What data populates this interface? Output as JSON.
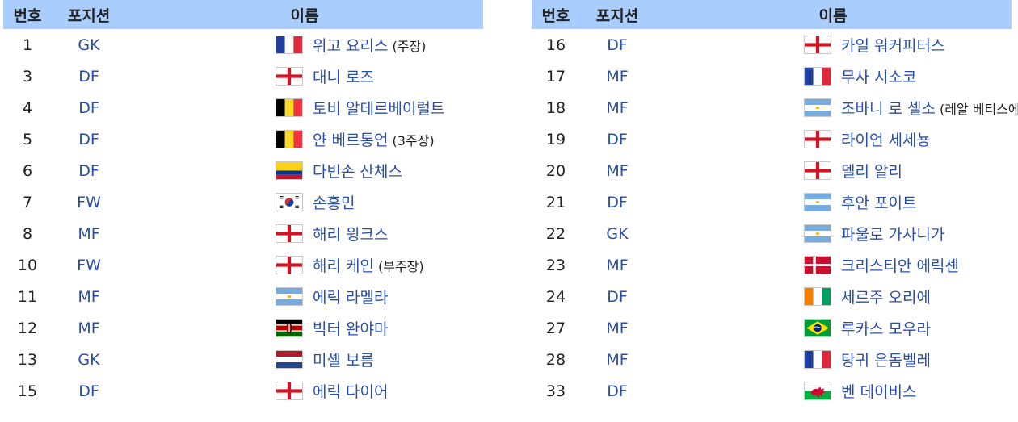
{
  "header": {
    "num": "번호",
    "pos": "포지션",
    "name": "이름"
  },
  "left": [
    {
      "num": "1",
      "pos": "GK",
      "flag": "france-flag",
      "name": "위고 요리스",
      "note": "(주장)"
    },
    {
      "num": "3",
      "pos": "DF",
      "flag": "england-flag",
      "name": "대니 로즈",
      "note": ""
    },
    {
      "num": "4",
      "pos": "DF",
      "flag": "belgium-flag",
      "name": "토비 알데르베이럴트",
      "note": ""
    },
    {
      "num": "5",
      "pos": "DF",
      "flag": "belgium-flag",
      "name": "얀 베르통언",
      "note": "(3주장)"
    },
    {
      "num": "6",
      "pos": "DF",
      "flag": "colombia-flag",
      "name": "다빈손 산체스",
      "note": ""
    },
    {
      "num": "7",
      "pos": "FW",
      "flag": "south-korea-flag",
      "name": "손흥민",
      "note": ""
    },
    {
      "num": "8",
      "pos": "MF",
      "flag": "england-flag",
      "name": "해리 윙크스",
      "note": ""
    },
    {
      "num": "10",
      "pos": "FW",
      "flag": "england-flag",
      "name": "해리 케인",
      "note": "(부주장)"
    },
    {
      "num": "11",
      "pos": "MF",
      "flag": "argentina-flag",
      "name": "에릭 라멜라",
      "note": ""
    },
    {
      "num": "12",
      "pos": "MF",
      "flag": "kenya-flag",
      "name": "빅터 완야마",
      "note": ""
    },
    {
      "num": "13",
      "pos": "GK",
      "flag": "netherlands-flag",
      "name": "미셸 보름",
      "note": ""
    },
    {
      "num": "15",
      "pos": "DF",
      "flag": "england-flag",
      "name": "에릭 다이어",
      "note": ""
    }
  ],
  "right": [
    {
      "num": "16",
      "pos": "DF",
      "flag": "england-flag",
      "name": "카일 워커피터스",
      "note": ""
    },
    {
      "num": "17",
      "pos": "MF",
      "flag": "france-flag",
      "name": "무사 시소코",
      "note": ""
    },
    {
      "num": "18",
      "pos": "MF",
      "flag": "argentina-flag",
      "name": "조바니 로 셀소",
      "note": "(레알 베티스에서 임대)"
    },
    {
      "num": "19",
      "pos": "DF",
      "flag": "england-flag",
      "name": "라이언 세세뇽",
      "note": ""
    },
    {
      "num": "20",
      "pos": "MF",
      "flag": "england-flag",
      "name": "델리 알리",
      "note": ""
    },
    {
      "num": "21",
      "pos": "DF",
      "flag": "argentina-flag",
      "name": "후안 포이트",
      "note": ""
    },
    {
      "num": "22",
      "pos": "GK",
      "flag": "argentina-flag",
      "name": "파울로 가사니가",
      "note": ""
    },
    {
      "num": "23",
      "pos": "MF",
      "flag": "denmark-flag",
      "name": "크리스티안 에릭센",
      "note": ""
    },
    {
      "num": "24",
      "pos": "DF",
      "flag": "ivory-coast-flag",
      "name": "세르주 오리에",
      "note": ""
    },
    {
      "num": "27",
      "pos": "MF",
      "flag": "brazil-flag",
      "name": "루카스 모우라",
      "note": ""
    },
    {
      "num": "28",
      "pos": "MF",
      "flag": "france-flag",
      "name": "탕귀 은돔벨레",
      "note": ""
    },
    {
      "num": "33",
      "pos": "DF",
      "flag": "wales-flag",
      "name": "벤 데이비스",
      "note": ""
    }
  ],
  "colors": {
    "header_bg": "#a9cdfd",
    "link": "#2a4fa8",
    "text": "#202122"
  }
}
